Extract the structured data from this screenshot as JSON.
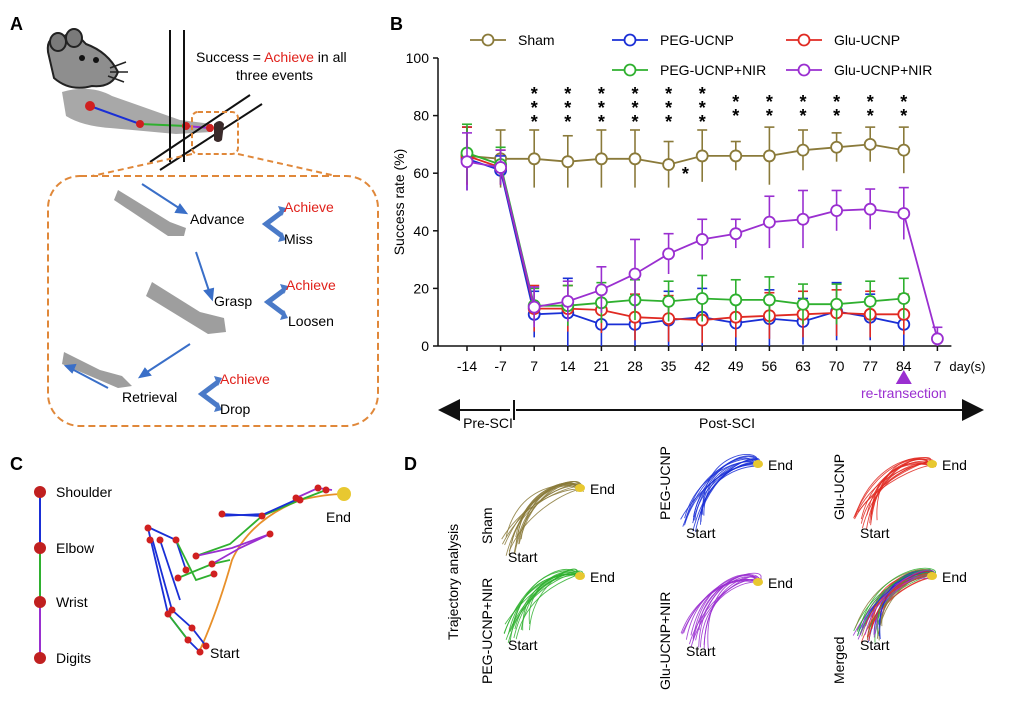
{
  "panels": {
    "a": {
      "letter": "A",
      "success_prefix": "Success = ",
      "success_achieve": "Achieve",
      "success_suffix_1": " in all",
      "success_suffix_2": "three events",
      "events": [
        {
          "name": "Advance",
          "outcomes": [
            "Achieve",
            "Miss"
          ]
        },
        {
          "name": "Grasp",
          "outcomes": [
            "Achieve",
            "Loosen"
          ]
        },
        {
          "name": "Retrieval",
          "outcomes": [
            "Achieve",
            "Drop"
          ]
        }
      ]
    },
    "b": {
      "letter": "B"
    },
    "c": {
      "letter": "C",
      "joints": [
        "Shoulder",
        "Elbow",
        "Wrist",
        "Digits"
      ],
      "end_label": "End",
      "start_label": "Start"
    },
    "d": {
      "letter": "D",
      "side_label": "Trajectory analysis",
      "groups": [
        "Sham",
        "PEG-UCNP",
        "Glu-UCNP",
        "PEG-UCNP+NIR",
        "Glu-UCNP+NIR",
        "Merged"
      ],
      "end_label": "End",
      "start_label": "Start"
    }
  },
  "colors": {
    "sham": "#8a7a3a",
    "peg": "#1a2fd6",
    "glu": "#e02a22",
    "peg_nir": "#2fb02f",
    "glu_nir": "#9a2fd0",
    "achieve": "#e0201a",
    "dashed_box": "#e0883a",
    "arrow": "#3a6fc8",
    "limb": "#9e9e9e",
    "joint": "#d02020",
    "end_dot": "#e8c830"
  },
  "chart_data": {
    "type": "line",
    "ylabel": "Success rate (%)",
    "xlabel": "day(s)",
    "ylim": [
      0,
      100
    ],
    "yticks": [
      0,
      20,
      40,
      60,
      80,
      100
    ],
    "categories": [
      "-14",
      "-7",
      "7",
      "14",
      "21",
      "28",
      "35",
      "42",
      "49",
      "56",
      "63",
      "70",
      "77",
      "84",
      "7"
    ],
    "series": [
      {
        "name": "Sham",
        "key": "sham",
        "values": [
          66,
          65,
          65,
          64,
          65,
          65,
          63,
          66,
          66,
          66,
          68,
          69,
          70,
          68,
          null
        ],
        "errors": [
          10,
          10,
          10,
          9,
          10,
          10,
          8,
          9,
          5,
          10,
          7,
          5,
          6,
          8,
          null
        ]
      },
      {
        "name": "PEG-UCNP",
        "key": "peg",
        "values": [
          65,
          61,
          11,
          11.5,
          7.5,
          7.5,
          9,
          10,
          8,
          9.5,
          8.5,
          12,
          10,
          7.5,
          null
        ],
        "errors": [
          11,
          5,
          8,
          12,
          8,
          8,
          10,
          10,
          8,
          10,
          8,
          10,
          8,
          8,
          null
        ]
      },
      {
        "name": "Glu-UCNP",
        "key": "glu",
        "values": [
          66,
          62,
          13,
          13,
          12.5,
          10,
          9.5,
          9,
          10,
          10.5,
          11,
          11.5,
          11,
          11,
          null
        ],
        "errors": [
          10,
          6,
          8,
          8,
          8,
          8,
          8,
          8,
          7,
          8,
          8,
          8,
          8,
          7,
          null
        ]
      },
      {
        "name": "PEG-UCNP+NIR",
        "key": "peg_nir",
        "values": [
          67,
          63,
          14,
          14,
          15,
          16,
          15.5,
          16.5,
          16,
          16,
          14.5,
          14.5,
          15.5,
          16.5,
          null
        ],
        "errors": [
          10,
          6,
          6,
          7,
          7,
          7,
          7,
          8,
          7,
          8,
          7,
          7,
          7,
          7,
          null
        ]
      },
      {
        "name": "Glu-UCNP+NIR",
        "key": "glu_nir",
        "values": [
          64,
          62,
          13.5,
          15.5,
          19.5,
          25,
          32,
          37,
          39,
          43,
          44,
          47,
          47.5,
          46,
          2.5
        ],
        "errors": [
          10,
          6,
          7,
          7,
          8,
          12,
          7,
          7,
          5,
          9,
          10,
          7,
          7,
          9,
          4
        ]
      }
    ],
    "significance": [
      {
        "category_index": 2,
        "marks": "***"
      },
      {
        "category_index": 3,
        "marks": "***"
      },
      {
        "category_index": 4,
        "marks": "***"
      },
      {
        "category_index": 5,
        "marks": "***"
      },
      {
        "category_index": 6,
        "marks": "***"
      },
      {
        "category_index": 7,
        "marks": "***"
      },
      {
        "category_index": 8,
        "marks": "**"
      },
      {
        "category_index": 9,
        "marks": "**"
      },
      {
        "category_index": 10,
        "marks": "**"
      },
      {
        "category_index": 11,
        "marks": "**"
      },
      {
        "category_index": 12,
        "marks": "**"
      },
      {
        "category_index": 13,
        "marks": "**"
      }
    ],
    "single_star": {
      "category_index": 6.5,
      "marks": "*"
    },
    "annotations": {
      "retransection": "re-transection",
      "pre": "Pre-SCI",
      "post": "Post-SCI"
    }
  }
}
